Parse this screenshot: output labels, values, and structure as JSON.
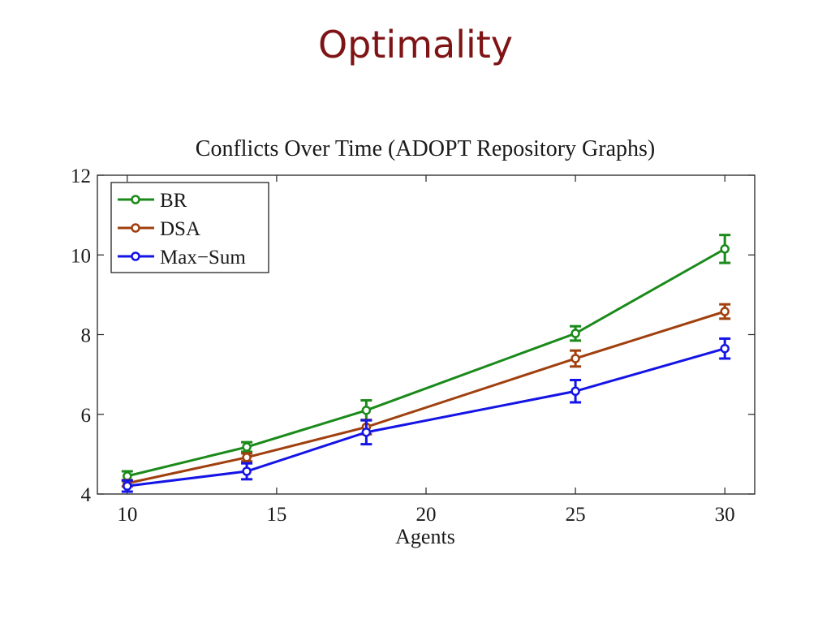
{
  "slide": {
    "title": "Optimality"
  },
  "chart_data": {
    "type": "line",
    "title": "Conflicts Over Time (ADOPT Repository Graphs)",
    "xlabel": "Agents",
    "ylabel": "",
    "xlim": [
      9,
      31
    ],
    "ylim": [
      4,
      12
    ],
    "xticks": [
      10,
      15,
      20,
      25,
      30
    ],
    "yticks": [
      4,
      6,
      8,
      10,
      12
    ],
    "x": [
      10,
      14,
      18,
      25,
      30
    ],
    "grid": false,
    "legend_position": "top-left",
    "series": [
      {
        "name": "BR",
        "color": "#1a8a1a",
        "values": [
          4.45,
          5.18,
          6.1,
          8.03,
          10.15
        ],
        "errors": [
          0.12,
          0.12,
          0.25,
          0.18,
          0.35
        ]
      },
      {
        "name": "DSA",
        "color": "#a0400f",
        "values": [
          4.27,
          4.92,
          5.68,
          7.4,
          8.58
        ],
        "errors": [
          0.08,
          0.1,
          0.18,
          0.2,
          0.18
        ]
      },
      {
        "name": "Max−Sum",
        "color": "#1414e6",
        "values": [
          4.2,
          4.57,
          5.55,
          6.58,
          7.65
        ],
        "errors": [
          0.14,
          0.2,
          0.3,
          0.28,
          0.25
        ]
      }
    ]
  }
}
